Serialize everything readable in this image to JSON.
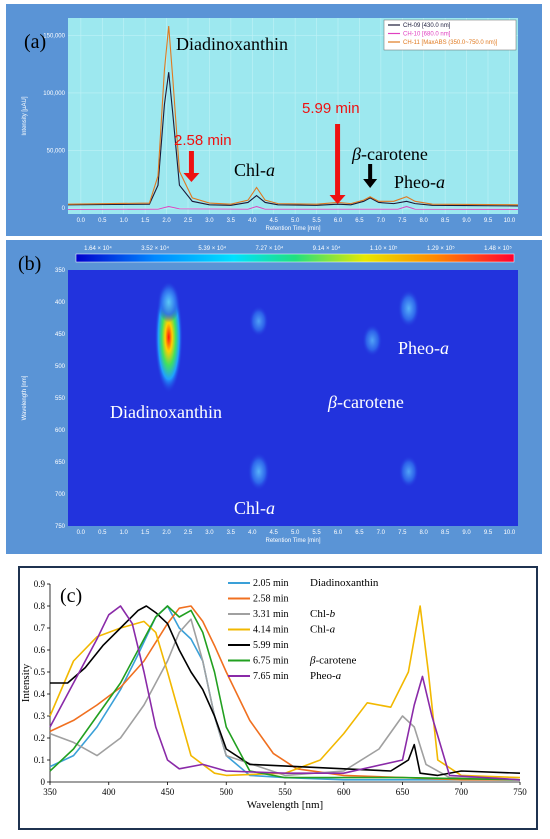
{
  "chart_data": [
    {
      "panel_label": "(a)",
      "type": "line",
      "xlabel": "Retention Time [min]",
      "ylabel": "Intensity [µAU]",
      "xlim": [
        -0.3,
        10.2
      ],
      "ylim": [
        -5000,
        165000
      ],
      "x_ticks": [
        "0.0",
        "0.5",
        "1.0",
        "1.5",
        "2.0",
        "2.5",
        "3.0",
        "3.5",
        "4.0",
        "4.5",
        "5.0",
        "5.5",
        "6.0",
        "6.5",
        "7.0",
        "7.5",
        "8.0",
        "8.5",
        "9.0",
        "9.5",
        "10.0"
      ],
      "y_ticks": [
        "0",
        "50,000",
        "100,000",
        "150,000"
      ],
      "legend_position": "top-right",
      "series": [
        {
          "name": "CH-09 [430.0 nm]",
          "color": "#1a1a3a",
          "x": [
            -0.3,
            1.6,
            1.8,
            1.95,
            2.05,
            2.15,
            2.3,
            2.6,
            3.0,
            3.5,
            3.9,
            4.1,
            4.3,
            4.6,
            5.5,
            6.0,
            6.3,
            6.6,
            6.75,
            6.95,
            7.3,
            7.6,
            7.8,
            8.2,
            10.2
          ],
          "y": [
            3000,
            3500,
            20000,
            90000,
            118000,
            80000,
            20000,
            6000,
            3000,
            2500,
            5000,
            11000,
            5000,
            3000,
            2500,
            3500,
            3000,
            6000,
            9000,
            5000,
            4000,
            6000,
            4000,
            2500,
            2000
          ]
        },
        {
          "name": "CH-10 [680.0 nm]",
          "color": "#e040c0",
          "x": [
            -0.3,
            1.8,
            2.05,
            2.3,
            3.9,
            4.1,
            4.3,
            7.4,
            7.6,
            7.8,
            10.2
          ],
          "y": [
            -1000,
            -800,
            1500,
            -500,
            -800,
            1500,
            -800,
            -800,
            1500,
            -800,
            -1000
          ]
        },
        {
          "name": "CH-11 [MaxABS (350.0~750.0 nm)]",
          "color": "#e07a20",
          "x": [
            -0.3,
            1.6,
            1.8,
            1.95,
            2.05,
            2.15,
            2.3,
            2.6,
            3.0,
            3.5,
            3.9,
            4.1,
            4.3,
            4.6,
            5.5,
            6.0,
            6.3,
            6.6,
            6.75,
            6.95,
            7.3,
            7.6,
            7.8,
            8.2,
            10.2
          ],
          "y": [
            3500,
            4500,
            28000,
            120000,
            158000,
            110000,
            32000,
            9000,
            4500,
            3500,
            7000,
            18000,
            7000,
            4000,
            3500,
            5000,
            4000,
            7000,
            10000,
            6000,
            6000,
            10000,
            6000,
            3500,
            3000
          ]
        }
      ],
      "annotations": [
        {
          "text": "Diadinoxanthin"
        },
        {
          "text": "2.58 min",
          "color": "#ee1111"
        },
        {
          "text": "5.99 min",
          "color": "#ee1111"
        },
        {
          "text": "Chl-",
          "italic_suffix": "a"
        },
        {
          "text": "carotene",
          "italic_prefix": "β-"
        },
        {
          "text": "Pheo-",
          "italic_suffix": "a"
        }
      ]
    },
    {
      "panel_label": "(b)",
      "type": "heatmap",
      "xlabel": "Retention Time [min]",
      "ylabel": "Wavelength [nm]",
      "xlim": [
        -0.3,
        10.2
      ],
      "ylim": [
        350,
        750
      ],
      "x_ticks": [
        "0.0",
        "0.5",
        "1.0",
        "1.5",
        "2.0",
        "2.5",
        "3.0",
        "3.5",
        "4.0",
        "4.5",
        "5.0",
        "5.5",
        "6.0",
        "6.5",
        "7.0",
        "7.5",
        "8.0",
        "8.5",
        "9.0",
        "9.5",
        "10.0"
      ],
      "y_ticks": [
        "350",
        "400",
        "450",
        "500",
        "550",
        "600",
        "650",
        "700",
        "750"
      ],
      "colorbar_labels": [
        "1.64 × 10⁴",
        "3.52 × 10⁴",
        "5.39 × 10⁴",
        "7.27 × 10⁴",
        "9.14 × 10⁴",
        "1.10 × 10⁵",
        "1.29 × 10⁵",
        "1.48 × 10⁵"
      ],
      "background_color": "#2233dd",
      "spots": [
        {
          "t": 2.05,
          "wl": 455,
          "level": 1.0
        },
        {
          "t": 2.05,
          "wl": 400,
          "level": 0.35
        },
        {
          "t": 4.15,
          "wl": 430,
          "level": 0.18
        },
        {
          "t": 4.15,
          "wl": 665,
          "level": 0.3
        },
        {
          "t": 6.8,
          "wl": 460,
          "level": 0.2
        },
        {
          "t": 7.65,
          "wl": 410,
          "level": 0.3
        },
        {
          "t": 7.65,
          "wl": 665,
          "level": 0.2
        }
      ],
      "annotations": [
        {
          "text": "Diadinoxanthin"
        },
        {
          "text": "Chl-",
          "italic_suffix": "a"
        },
        {
          "text": "carotene",
          "italic_prefix": "β-"
        },
        {
          "text": "Pheo-",
          "italic_suffix": "a"
        }
      ]
    },
    {
      "panel_label": "(c)",
      "type": "line",
      "xlabel": "Wavelength [nm]",
      "ylabel": "Intensity",
      "xlim": [
        350,
        750
      ],
      "ylim": [
        0,
        0.9
      ],
      "x_ticks": [
        "350",
        "400",
        "450",
        "500",
        "550",
        "600",
        "650",
        "700",
        "750"
      ],
      "y_ticks": [
        "0",
        "0.1",
        "0.2",
        "0.3",
        "0.4",
        "0.5",
        "0.6",
        "0.7",
        "0.8",
        "0.9"
      ],
      "legend_position": "top-right",
      "series": [
        {
          "name": "2.05 min",
          "compound": "Diadinoxanthin",
          "color": "#3aa0d8",
          "x": [
            350,
            370,
            390,
            410,
            425,
            440,
            450,
            460,
            470,
            480,
            490,
            500,
            520,
            550,
            600,
            650,
            700,
            750
          ],
          "y": [
            0.07,
            0.12,
            0.25,
            0.42,
            0.58,
            0.75,
            0.8,
            0.7,
            0.65,
            0.55,
            0.3,
            0.12,
            0.03,
            0.02,
            0.01,
            0.01,
            0.01,
            0.01
          ]
        },
        {
          "name": "2.58 min",
          "compound": "",
          "color": "#f07020",
          "x": [
            350,
            370,
            390,
            410,
            430,
            450,
            460,
            470,
            480,
            490,
            500,
            520,
            540,
            560,
            600,
            650,
            700,
            750
          ],
          "y": [
            0.23,
            0.28,
            0.35,
            0.43,
            0.55,
            0.72,
            0.79,
            0.8,
            0.73,
            0.62,
            0.5,
            0.28,
            0.13,
            0.06,
            0.03,
            0.02,
            0.01,
            0.01
          ]
        },
        {
          "name": "3.31 min",
          "compound": "Chl-b",
          "color": "#a0a0a0",
          "x": [
            350,
            370,
            390,
            410,
            430,
            450,
            460,
            470,
            480,
            490,
            500,
            550,
            600,
            630,
            650,
            660,
            670,
            690,
            750
          ],
          "y": [
            0.22,
            0.18,
            0.12,
            0.2,
            0.35,
            0.55,
            0.68,
            0.74,
            0.55,
            0.3,
            0.12,
            0.03,
            0.05,
            0.15,
            0.3,
            0.25,
            0.08,
            0.02,
            0.01
          ]
        },
        {
          "name": "4.14 min",
          "compound": "Chl-a",
          "color": "#f2b800",
          "x": [
            350,
            370,
            390,
            410,
            430,
            440,
            450,
            470,
            490,
            500,
            550,
            580,
            600,
            620,
            640,
            655,
            665,
            672,
            680,
            700,
            750
          ],
          "y": [
            0.3,
            0.55,
            0.66,
            0.7,
            0.73,
            0.68,
            0.5,
            0.12,
            0.04,
            0.03,
            0.04,
            0.1,
            0.22,
            0.36,
            0.34,
            0.5,
            0.8,
            0.5,
            0.1,
            0.03,
            0.02
          ]
        },
        {
          "name": "5.99 min",
          "compound": "",
          "color": "#000000",
          "x": [
            350,
            365,
            380,
            395,
            410,
            425,
            432,
            440,
            450,
            460,
            470,
            480,
            490,
            500,
            520,
            560,
            600,
            640,
            655,
            660,
            665,
            680,
            700,
            750
          ],
          "y": [
            0.45,
            0.45,
            0.52,
            0.62,
            0.7,
            0.78,
            0.8,
            0.77,
            0.72,
            0.6,
            0.5,
            0.42,
            0.3,
            0.15,
            0.08,
            0.07,
            0.06,
            0.05,
            0.1,
            0.17,
            0.04,
            0.03,
            0.05,
            0.04
          ]
        },
        {
          "name": "6.75 min",
          "compound": "β-carotene",
          "color": "#22a020",
          "x": [
            350,
            370,
            390,
            410,
            430,
            440,
            450,
            460,
            470,
            480,
            490,
            500,
            520,
            550,
            650,
            750
          ],
          "y": [
            0.05,
            0.15,
            0.3,
            0.45,
            0.65,
            0.75,
            0.8,
            0.75,
            0.78,
            0.68,
            0.5,
            0.25,
            0.05,
            0.02,
            0.02,
            0.01
          ]
        },
        {
          "name": "7.65 min",
          "compound": "Pheo-a",
          "color": "#8a2aa8",
          "x": [
            350,
            370,
            390,
            400,
            410,
            420,
            430,
            440,
            450,
            460,
            480,
            500,
            550,
            600,
            650,
            660,
            667,
            675,
            690,
            750
          ],
          "y": [
            0.25,
            0.45,
            0.65,
            0.76,
            0.8,
            0.72,
            0.5,
            0.25,
            0.1,
            0.06,
            0.08,
            0.05,
            0.04,
            0.04,
            0.1,
            0.35,
            0.48,
            0.3,
            0.03,
            0.01
          ]
        }
      ]
    }
  ]
}
